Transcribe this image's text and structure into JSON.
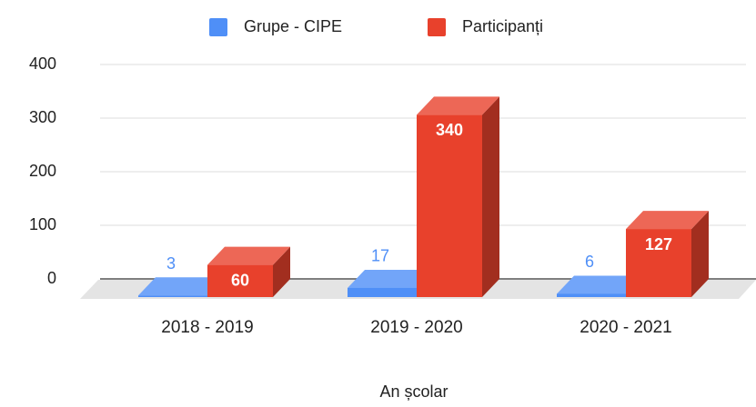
{
  "chart_data": {
    "type": "bar3d",
    "x_label": "An școlar",
    "categories": [
      "2018 - 2019",
      "2019 - 2020",
      "2020 - 2021"
    ],
    "series": [
      {
        "name": "Grupe - CIPE",
        "color": "#4f8ff7",
        "values": [
          3,
          17,
          6
        ]
      },
      {
        "name": "Participanți",
        "color": "#e8412c",
        "values": [
          60,
          340,
          127
        ]
      }
    ],
    "ylim": [
      0,
      400
    ],
    "yticks": [
      0,
      100,
      200,
      300,
      400
    ],
    "grid": true,
    "legend": "top"
  }
}
